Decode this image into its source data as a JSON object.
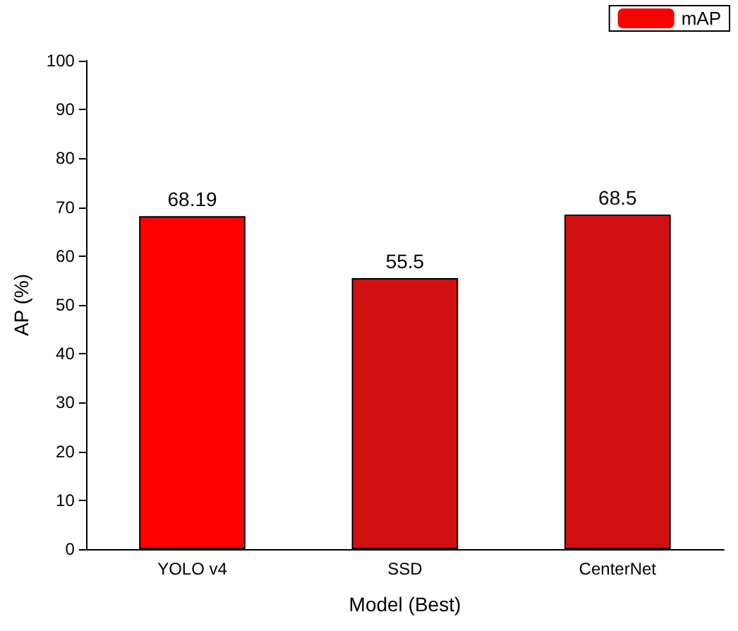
{
  "chart_data": {
    "type": "bar",
    "xlabel": "Model (Best)",
    "ylabel": "AP (%)",
    "categories": [
      "YOLO v4",
      "SSD",
      "CenterNet"
    ],
    "series": [
      {
        "name": "mAP",
        "color": "#ff0000",
        "colors": [
          "#ff0000",
          "#d01010",
          "#d01010"
        ],
        "values": [
          68.19,
          55.5,
          68.5
        ]
      }
    ],
    "ylim": [
      0,
      100
    ],
    "yticks": [
      0,
      10,
      20,
      30,
      40,
      50,
      60,
      70,
      80,
      90,
      100
    ],
    "grid": false,
    "legend": "top right",
    "data_labels": true
  }
}
